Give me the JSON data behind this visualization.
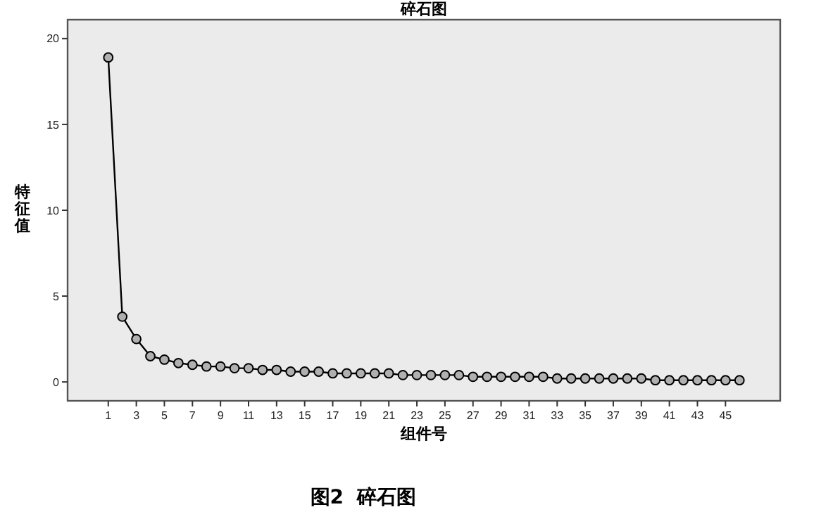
{
  "chart_data": {
    "type": "line",
    "title": "碎石图",
    "xlabel": "组件号",
    "ylabel": "特征值",
    "x": [
      1,
      2,
      3,
      4,
      5,
      6,
      7,
      8,
      9,
      10,
      11,
      12,
      13,
      14,
      15,
      16,
      17,
      18,
      19,
      20,
      21,
      22,
      23,
      24,
      25,
      26,
      27,
      28,
      29,
      30,
      31,
      32,
      33,
      34,
      35,
      36,
      37,
      38,
      39,
      40,
      41,
      42,
      43,
      44,
      45,
      46
    ],
    "series": [
      {
        "color": "#000000",
        "values": [
          18.9,
          3.8,
          2.5,
          1.5,
          1.3,
          1.1,
          1.0,
          0.9,
          0.9,
          0.8,
          0.8,
          0.7,
          0.7,
          0.6,
          0.6,
          0.6,
          0.5,
          0.5,
          0.5,
          0.5,
          0.5,
          0.4,
          0.4,
          0.4,
          0.4,
          0.4,
          0.3,
          0.3,
          0.3,
          0.3,
          0.3,
          0.3,
          0.2,
          0.2,
          0.2,
          0.2,
          0.2,
          0.2,
          0.2,
          0.1,
          0.1,
          0.1,
          0.1,
          0.1,
          0.1,
          0.1
        ]
      }
    ],
    "xlim": [
      -1.9,
      48.9
    ],
    "xticks": [
      1,
      3,
      5,
      7,
      9,
      11,
      13,
      15,
      17,
      19,
      21,
      23,
      25,
      27,
      29,
      31,
      33,
      35,
      37,
      39,
      41,
      43,
      45
    ],
    "ylim": [
      -1.1,
      21.1
    ],
    "yticks": [
      0,
      5,
      10,
      15,
      20
    ],
    "marker": "circle",
    "grid": false,
    "annotations": [
      "图2  碎石图"
    ]
  }
}
